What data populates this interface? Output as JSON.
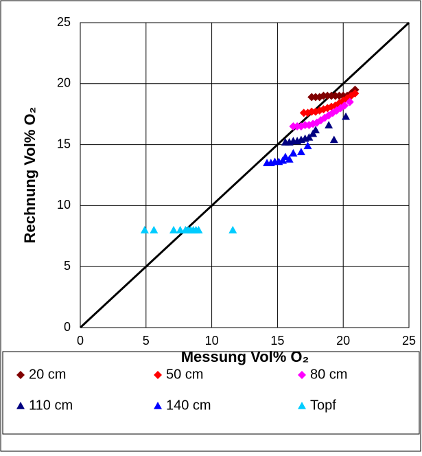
{
  "chart_data": {
    "type": "scatter",
    "x_label": "Messung Vol% O₂",
    "y_label": "Rechnung Vol% O₂",
    "xlim": [
      0,
      25
    ],
    "xticks": [
      0,
      5,
      10,
      15,
      20,
      25
    ],
    "ylim": [
      0,
      25
    ],
    "yticks": [
      0,
      5,
      10,
      15,
      20,
      25
    ],
    "grid": true,
    "identity_line": {
      "x": [
        0,
        25
      ],
      "y": [
        0,
        25
      ],
      "color": "#000000"
    },
    "series": [
      {
        "name": "20 cm",
        "color": "#800000",
        "marker": "diamond",
        "x": [
          17.6,
          17.9,
          18.2,
          18.5,
          18.8,
          19.1,
          19.4,
          19.7,
          20.0,
          20.3,
          20.6,
          20.9
        ],
        "values": [
          18.9,
          18.9,
          18.9,
          19.0,
          19.0,
          19.0,
          19.0,
          19.0,
          19.0,
          19.0,
          19.2,
          19.5
        ]
      },
      {
        "name": "50 cm",
        "color": "#ff0000",
        "marker": "diamond",
        "x": [
          17.0,
          17.3,
          17.6,
          17.9,
          18.2,
          18.5,
          18.8,
          19.1,
          19.4,
          19.7,
          20.0,
          20.3,
          20.6,
          20.9
        ],
        "values": [
          17.6,
          17.6,
          17.7,
          17.7,
          17.8,
          17.9,
          18.0,
          18.1,
          18.2,
          18.4,
          18.6,
          18.8,
          19.0,
          19.2
        ]
      },
      {
        "name": "80 cm",
        "color": "#ff00ff",
        "marker": "diamond",
        "x": [
          16.2,
          16.5,
          16.8,
          17.1,
          17.4,
          17.7,
          18.0,
          18.3,
          18.6,
          18.9,
          19.2,
          19.5,
          19.8,
          20.1,
          20.5
        ],
        "values": [
          16.5,
          16.5,
          16.5,
          16.6,
          16.6,
          16.7,
          16.8,
          17.0,
          17.2,
          17.4,
          17.6,
          17.8,
          18.0,
          18.2,
          18.5
        ]
      },
      {
        "name": "110 cm",
        "color": "#000080",
        "marker": "triangle",
        "x": [
          15.6,
          15.9,
          16.2,
          16.5,
          16.8,
          17.1,
          17.4,
          17.7,
          17.9,
          18.9,
          19.3,
          20.2
        ],
        "values": [
          15.2,
          15.2,
          15.3,
          15.3,
          15.4,
          15.5,
          15.6,
          15.9,
          16.2,
          16.6,
          15.4,
          17.3
        ]
      },
      {
        "name": "140 cm",
        "color": "#0000ff",
        "marker": "triangle",
        "x": [
          14.2,
          14.5,
          14.8,
          15.1,
          15.4,
          15.6,
          15.9,
          16.2,
          16.8,
          17.3
        ],
        "values": [
          13.5,
          13.5,
          13.6,
          13.6,
          13.7,
          14.0,
          13.8,
          14.3,
          14.4,
          14.9
        ]
      },
      {
        "name": "Topf",
        "color": "#00ccff",
        "marker": "triangle",
        "x": [
          4.9,
          5.6,
          7.1,
          7.6,
          8.0,
          8.2,
          8.4,
          8.6,
          8.8,
          9.0,
          11.6
        ],
        "values": [
          8.0,
          8.0,
          8.0,
          8.0,
          8.0,
          8.0,
          8.0,
          8.0,
          8.0,
          8.0,
          8.0
        ]
      }
    ]
  }
}
